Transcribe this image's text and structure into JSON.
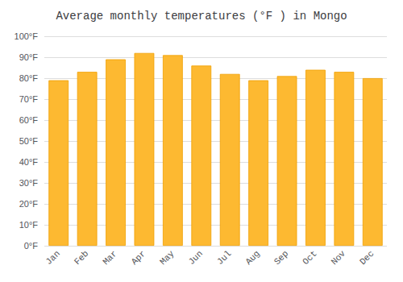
{
  "chart_data": {
    "type": "bar",
    "title": "Average monthly temperatures (°F ) in Mongo",
    "categories": [
      "Jan",
      "Feb",
      "Mar",
      "Apr",
      "May",
      "Jun",
      "Jul",
      "Aug",
      "Sep",
      "Oct",
      "Nov",
      "Dec"
    ],
    "values": [
      79,
      83,
      89,
      92,
      91,
      86,
      82,
      79,
      81,
      84,
      83,
      80
    ],
    "color": "#FDB931",
    "ylim": [
      0,
      100
    ],
    "yticks": [
      {
        "value": 0,
        "label": "0°F"
      },
      {
        "value": 10,
        "label": "10°F"
      },
      {
        "value": 20,
        "label": "20°F"
      },
      {
        "value": 30,
        "label": "30°F"
      },
      {
        "value": 40,
        "label": "40°F"
      },
      {
        "value": 50,
        "label": "50°F"
      },
      {
        "value": 60,
        "label": "60°F"
      },
      {
        "value": 70,
        "label": "70°F"
      },
      {
        "value": 80,
        "label": "80°F"
      },
      {
        "value": 90,
        "label": "90°F"
      },
      {
        "value": 100,
        "label": "100°F"
      }
    ],
    "grid": true
  }
}
